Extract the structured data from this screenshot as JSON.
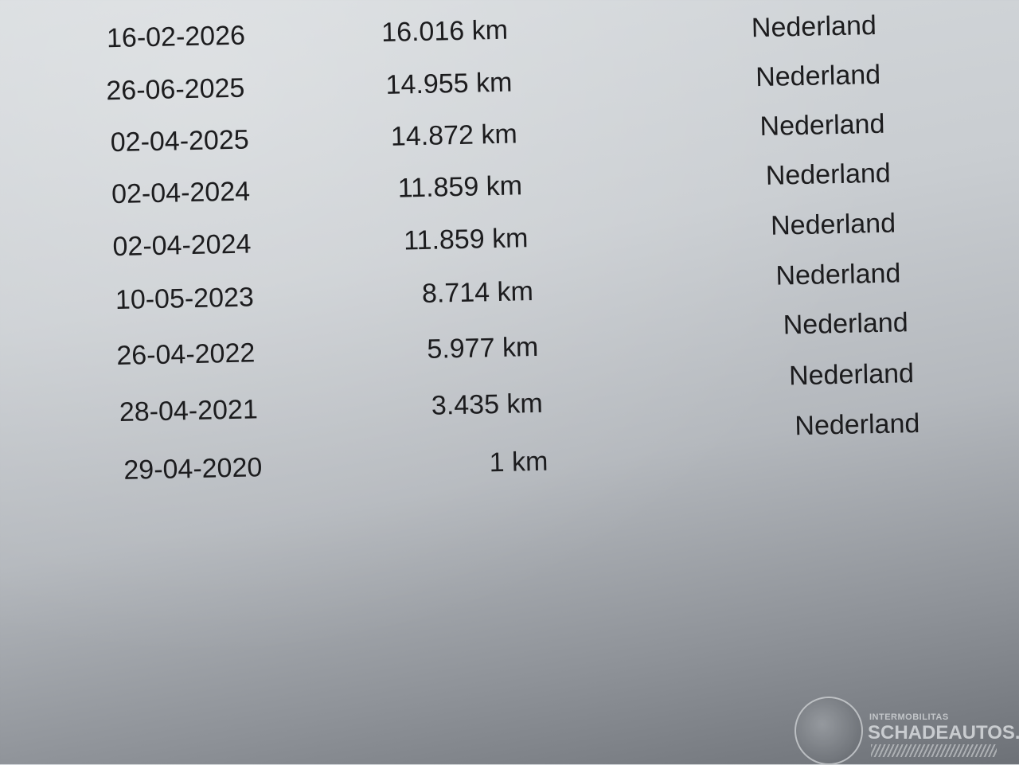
{
  "rows": [
    {
      "date": "16-02-2026",
      "km": "16.016 km",
      "country": "Nederland"
    },
    {
      "date": "26-06-2025",
      "km": "14.955 km",
      "country": "Nederland"
    },
    {
      "date": "02-04-2025",
      "km": "14.872 km",
      "country": "Nederland"
    },
    {
      "date": "02-04-2024",
      "km": "11.859 km",
      "country": "Nederland"
    },
    {
      "date": "02-04-2024",
      "km": "11.859 km",
      "country": "Nederland"
    },
    {
      "date": "10-05-2023",
      "km": "8.714 km",
      "country": "Nederland"
    },
    {
      "date": "26-04-2022",
      "km": "5.977 km",
      "country": "Nederland"
    },
    {
      "date": "28-04-2021",
      "km": "3.435 km",
      "country": "Nederland"
    },
    {
      "date": "29-04-2020",
      "km": "1 km",
      "country": "Nederland"
    }
  ],
  "watermark": {
    "line1": "INTERMOBILITAS",
    "line2": "SCHADEAUTOS.NL"
  }
}
